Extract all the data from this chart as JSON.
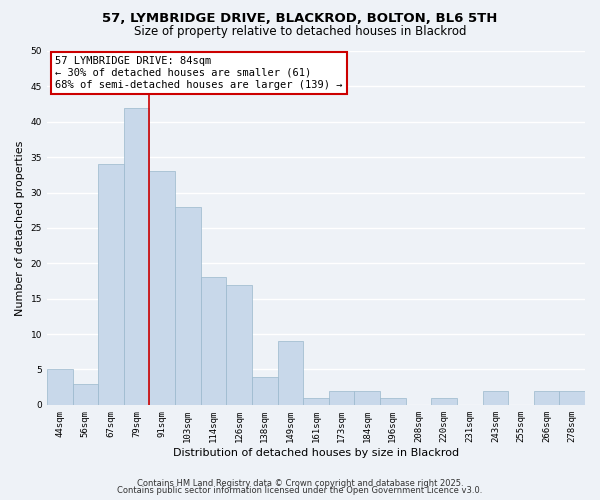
{
  "title": "57, LYMBRIDGE DRIVE, BLACKROD, BOLTON, BL6 5TH",
  "subtitle": "Size of property relative to detached houses in Blackrod",
  "xlabel": "Distribution of detached houses by size in Blackrod",
  "ylabel": "Number of detached properties",
  "bar_color": "#c8d8ea",
  "bar_edge_color": "#9ab8cc",
  "background_color": "#eef2f7",
  "grid_color": "#ffffff",
  "categories": [
    "44sqm",
    "56sqm",
    "67sqm",
    "79sqm",
    "91sqm",
    "103sqm",
    "114sqm",
    "126sqm",
    "138sqm",
    "149sqm",
    "161sqm",
    "173sqm",
    "184sqm",
    "196sqm",
    "208sqm",
    "220sqm",
    "231sqm",
    "243sqm",
    "255sqm",
    "266sqm",
    "278sqm"
  ],
  "values": [
    5,
    3,
    34,
    42,
    33,
    28,
    18,
    17,
    4,
    9,
    1,
    2,
    2,
    1,
    0,
    1,
    0,
    2,
    0,
    2,
    2
  ],
  "ylim": [
    0,
    50
  ],
  "yticks": [
    0,
    5,
    10,
    15,
    20,
    25,
    30,
    35,
    40,
    45,
    50
  ],
  "property_line_x": 3.5,
  "property_line_color": "#cc0000",
  "annotation_text": "57 LYMBRIDGE DRIVE: 84sqm\n← 30% of detached houses are smaller (61)\n68% of semi-detached houses are larger (139) →",
  "footer_line1": "Contains HM Land Registry data © Crown copyright and database right 2025.",
  "footer_line2": "Contains public sector information licensed under the Open Government Licence v3.0.",
  "title_fontsize": 9.5,
  "subtitle_fontsize": 8.5,
  "tick_fontsize": 6.5,
  "axis_label_fontsize": 8,
  "annotation_fontsize": 7.5,
  "footer_fontsize": 6
}
